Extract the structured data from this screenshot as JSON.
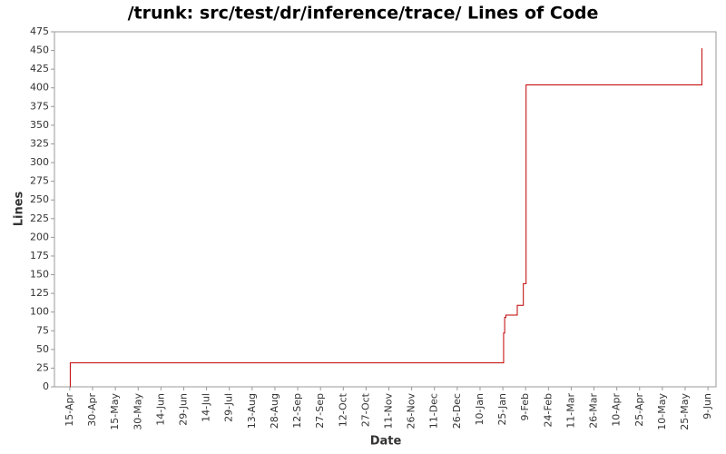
{
  "chart_data": {
    "type": "line",
    "step": "post",
    "title": "/trunk: src/test/dr/inference/trace/ Lines of Code",
    "x_label": "Date",
    "y_label": "Lines",
    "series": [
      {
        "name": "Lines",
        "color": "#c00000",
        "x": [
          0,
          0.3,
          285.5,
          286.2,
          287,
          294.5,
          298.5,
          300.3,
          416
        ],
        "values": [
          0,
          32,
          72,
          93,
          96,
          109,
          138,
          404,
          453
        ]
      }
    ],
    "xlim": [
      -10.1,
      425.3
    ],
    "xticks": [
      {
        "value": 0,
        "label": "15-Apr"
      },
      {
        "value": 15,
        "label": "30-Apr"
      },
      {
        "value": 30,
        "label": "15-May"
      },
      {
        "value": 45,
        "label": "30-May"
      },
      {
        "value": 60,
        "label": "14-Jun"
      },
      {
        "value": 75,
        "label": "29-Jun"
      },
      {
        "value": 90,
        "label": "14-Jul"
      },
      {
        "value": 105,
        "label": "29-Jul"
      },
      {
        "value": 120,
        "label": "13-Aug"
      },
      {
        "value": 135,
        "label": "28-Aug"
      },
      {
        "value": 150,
        "label": "12-Sep"
      },
      {
        "value": 165,
        "label": "27-Sep"
      },
      {
        "value": 180,
        "label": "12-Oct"
      },
      {
        "value": 195,
        "label": "27-Oct"
      },
      {
        "value": 210,
        "label": "11-Nov"
      },
      {
        "value": 225,
        "label": "26-Nov"
      },
      {
        "value": 240,
        "label": "11-Dec"
      },
      {
        "value": 255,
        "label": "26-Dec"
      },
      {
        "value": 270,
        "label": "10-Jan"
      },
      {
        "value": 285,
        "label": "25-Jan"
      },
      {
        "value": 300,
        "label": "9-Feb"
      },
      {
        "value": 315,
        "label": "24-Feb"
      },
      {
        "value": 330,
        "label": "11-Mar"
      },
      {
        "value": 345,
        "label": "26-Mar"
      },
      {
        "value": 360,
        "label": "10-Apr"
      },
      {
        "value": 375,
        "label": "25-Apr"
      },
      {
        "value": 390,
        "label": "10-May"
      },
      {
        "value": 405,
        "label": "25-May"
      },
      {
        "value": 420,
        "label": "9-Jun"
      }
    ],
    "ylim": [
      0,
      475
    ],
    "yticks": [
      0,
      25,
      50,
      75,
      100,
      125,
      150,
      175,
      200,
      225,
      250,
      275,
      300,
      325,
      350,
      375,
      400,
      425,
      450,
      475
    ],
    "grid": false
  }
}
